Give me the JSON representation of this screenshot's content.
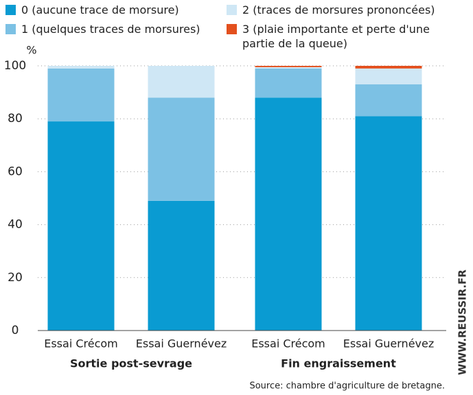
{
  "chart_data": {
    "type": "stacked-bar",
    "y_label": "%",
    "categories": [
      "Essai Crécom",
      "Essai Guernévez",
      "Essai Crécom",
      "Essai Guernévez"
    ],
    "groups": [
      "Sortie post-sevrage",
      "Fin engraissement"
    ],
    "series": [
      {
        "name": "0 (aucune trace de morsure)",
        "color": "#0a9bd2",
        "values": [
          79,
          49,
          88,
          81
        ]
      },
      {
        "name": "1 (quelques traces de morsures)",
        "color": "#7cc1e4",
        "values": [
          20,
          39,
          11,
          12
        ]
      },
      {
        "name": "2 (traces de morsures prononcées)",
        "color": "#cfe7f5",
        "values": [
          1,
          12,
          0.5,
          6
        ]
      },
      {
        "name": "3 (plaie importante et perte d'une partie de la queue)",
        "color": "#e3501e",
        "values": [
          0,
          0,
          0.5,
          1
        ]
      }
    ],
    "ylim": [
      0,
      100
    ],
    "yticks": [
      0,
      20,
      40,
      60,
      80,
      100
    ],
    "grid": true,
    "source": "Source: chambre d'agriculture de bretagne.",
    "watermark": "WWW.REUSSIR.FR"
  }
}
